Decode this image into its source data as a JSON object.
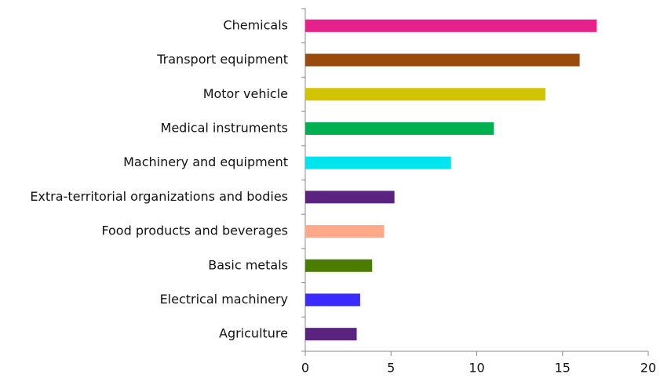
{
  "chart_data": {
    "type": "barh",
    "categories": [
      "Chemicals",
      "Transport equipment",
      "Motor vehicle",
      "Medical instruments",
      "Machinery and equipment",
      "Extra-territorial organizations and bodies",
      "Food products and beverages",
      "Basic metals",
      "Electrical machinery",
      "Agriculture"
    ],
    "values": [
      17,
      16,
      14,
      11,
      8.5,
      5.2,
      4.6,
      3.9,
      3.2,
      3.0
    ],
    "colors": [
      "#e8208c",
      "#9a4a0c",
      "#d2c400",
      "#00b050",
      "#00e4ee",
      "#5b2380",
      "#ffa98a",
      "#4a7c00",
      "#3a2cff",
      "#5b2380"
    ],
    "xlim": [
      0,
      20
    ],
    "xticks": [
      0,
      5,
      10,
      15,
      20
    ]
  }
}
